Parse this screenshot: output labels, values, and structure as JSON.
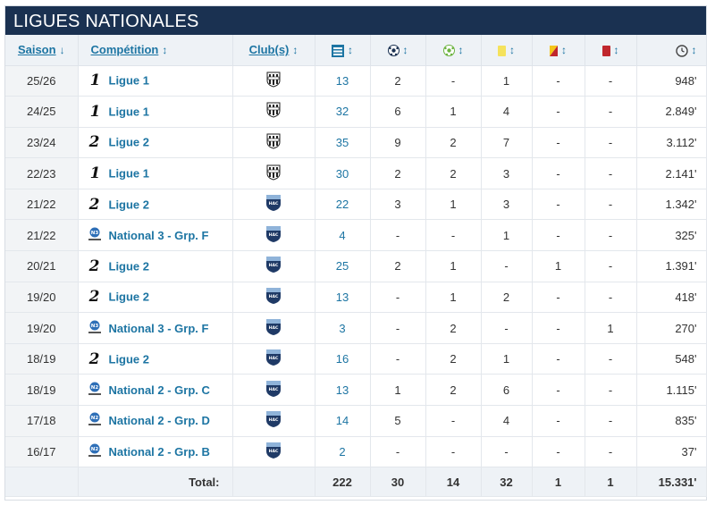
{
  "panel": {
    "title": "LIGUES NATIONALES"
  },
  "columns": {
    "season": "Saison",
    "competition": "Compétition",
    "club": "Club(s)",
    "season_sort_arrow": "↓",
    "sort_arrow": "↕",
    "icons": [
      "squad-icon",
      "goal-icon",
      "assist-icon",
      "yellow-card-icon",
      "yellow-red-card-icon",
      "red-card-icon",
      "clock-icon"
    ]
  },
  "rows": [
    {
      "season": "25/26",
      "comp_icon": "ligue1-logo",
      "comp_mark": "1",
      "competition": "Ligue 1",
      "club": "angers-crest",
      "apps": "13",
      "goals": "2",
      "assists": "-",
      "yellow": "1",
      "yellow_red": "-",
      "red": "-",
      "minutes": "948'"
    },
    {
      "season": "24/25",
      "comp_icon": "ligue1-logo",
      "comp_mark": "1",
      "competition": "Ligue 1",
      "club": "angers-crest",
      "apps": "32",
      "goals": "6",
      "assists": "1",
      "yellow": "4",
      "yellow_red": "-",
      "red": "-",
      "minutes": "2.849'"
    },
    {
      "season": "23/24",
      "comp_icon": "ligue2-logo",
      "comp_mark": "2",
      "competition": "Ligue 2",
      "club": "angers-crest",
      "apps": "35",
      "goals": "9",
      "assists": "2",
      "yellow": "7",
      "yellow_red": "-",
      "red": "-",
      "minutes": "3.112'"
    },
    {
      "season": "22/23",
      "comp_icon": "ligue1-logo",
      "comp_mark": "1",
      "competition": "Ligue 1",
      "club": "angers-crest",
      "apps": "30",
      "goals": "2",
      "assists": "2",
      "yellow": "3",
      "yellow_red": "-",
      "red": "-",
      "minutes": "2.141'"
    },
    {
      "season": "21/22",
      "comp_icon": "ligue2-logo",
      "comp_mark": "2",
      "competition": "Ligue 2",
      "club": "le-havre-crest",
      "apps": "22",
      "goals": "3",
      "assists": "1",
      "yellow": "3",
      "yellow_red": "-",
      "red": "-",
      "minutes": "1.342'"
    },
    {
      "season": "21/22",
      "comp_icon": "national3-logo",
      "comp_mark": "N3",
      "competition": "National 3 - Grp. F",
      "club": "le-havre-crest",
      "apps": "4",
      "goals": "-",
      "assists": "-",
      "yellow": "1",
      "yellow_red": "-",
      "red": "-",
      "minutes": "325'"
    },
    {
      "season": "20/21",
      "comp_icon": "ligue2-logo",
      "comp_mark": "2",
      "competition": "Ligue 2",
      "club": "le-havre-crest",
      "apps": "25",
      "goals": "2",
      "assists": "1",
      "yellow": "-",
      "yellow_red": "1",
      "red": "-",
      "minutes": "1.391'"
    },
    {
      "season": "19/20",
      "comp_icon": "ligue2-logo",
      "comp_mark": "2",
      "competition": "Ligue 2",
      "club": "le-havre-crest",
      "apps": "13",
      "goals": "-",
      "assists": "1",
      "yellow": "2",
      "yellow_red": "-",
      "red": "-",
      "minutes": "418'"
    },
    {
      "season": "19/20",
      "comp_icon": "national3-logo",
      "comp_mark": "N3",
      "competition": "National 3 - Grp. F",
      "club": "le-havre-crest",
      "apps": "3",
      "goals": "-",
      "assists": "2",
      "yellow": "-",
      "yellow_red": "-",
      "red": "1",
      "minutes": "270'"
    },
    {
      "season": "18/19",
      "comp_icon": "ligue2-logo",
      "comp_mark": "2",
      "competition": "Ligue 2",
      "club": "le-havre-crest",
      "apps": "16",
      "goals": "-",
      "assists": "2",
      "yellow": "1",
      "yellow_red": "-",
      "red": "-",
      "minutes": "548'"
    },
    {
      "season": "18/19",
      "comp_icon": "national2-logo",
      "comp_mark": "N2",
      "competition": "National 2 - Grp. C",
      "club": "le-havre-crest",
      "apps": "13",
      "goals": "1",
      "assists": "2",
      "yellow": "6",
      "yellow_red": "-",
      "red": "-",
      "minutes": "1.115'"
    },
    {
      "season": "17/18",
      "comp_icon": "national2-logo",
      "comp_mark": "N2",
      "competition": "National 2 - Grp. D",
      "club": "le-havre-crest",
      "apps": "14",
      "goals": "5",
      "assists": "-",
      "yellow": "4",
      "yellow_red": "-",
      "red": "-",
      "minutes": "835'"
    },
    {
      "season": "16/17",
      "comp_icon": "national2-logo",
      "comp_mark": "N2",
      "competition": "National 2 - Grp. B",
      "club": "le-havre-crest",
      "apps": "2",
      "goals": "-",
      "assists": "-",
      "yellow": "-",
      "yellow_red": "-",
      "red": "-",
      "minutes": "37'"
    }
  ],
  "total": {
    "label": "Total:",
    "apps": "222",
    "goals": "30",
    "assists": "14",
    "yellow": "32",
    "yellow_red": "1",
    "red": "1",
    "minutes": "15.331'"
  },
  "colors": {
    "header_bg": "#1a3151",
    "link": "#1d75a3",
    "yellow_card": "#f5e25c",
    "red_card": "#c0272d"
  }
}
